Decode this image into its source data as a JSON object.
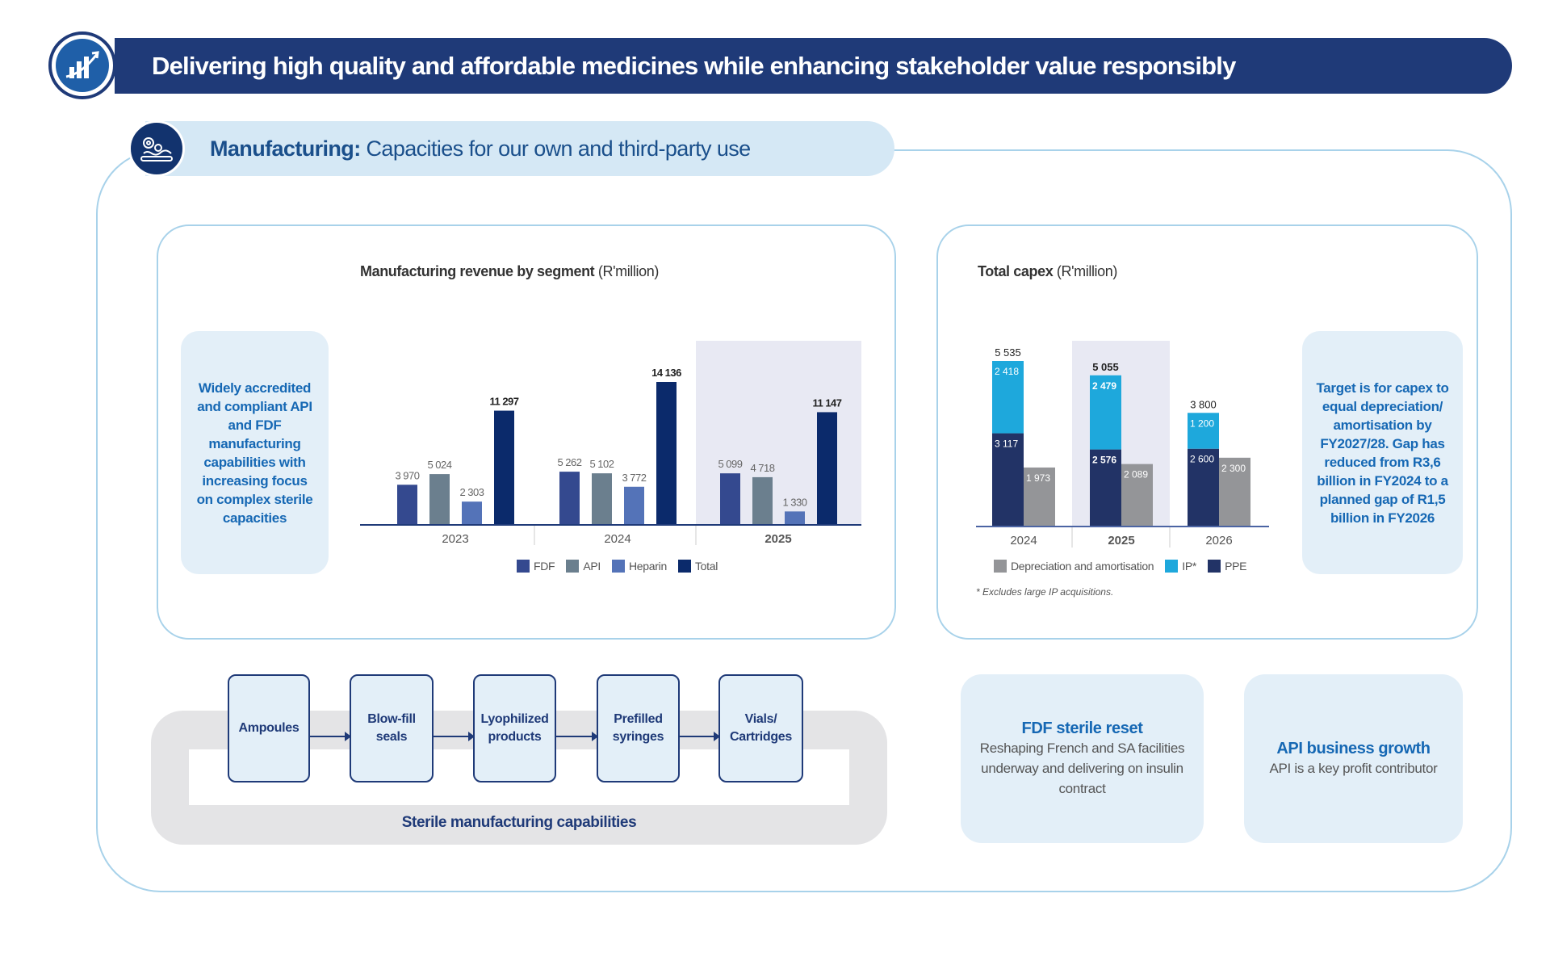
{
  "header": {
    "title": "Delivering high quality and affordable medicines while enhancing stakeholder value responsibly",
    "icon": "growth-chart-icon"
  },
  "section": {
    "title_bold": "Manufacturing:",
    "title_rest": "Capacities for our own and third-party use",
    "icon": "gear-conveyor-icon"
  },
  "left_note": "Widely accredited and compliant API and FDF manufacturing capabilities with increasing focus on complex sterile capacities",
  "right_note": "Target is for capex to equal depreciation/ amortisation by FY2027/28. Gap has reduced from R3,6 billion in FY2024 to a planned gap of R1,5 billion in FY2026",
  "chart_data": [
    {
      "type": "bar",
      "title": "Manufacturing revenue by segment",
      "unit": "(R'million)",
      "categories": [
        "2023",
        "2024",
        "2025"
      ],
      "highlight": "2025",
      "series": [
        {
          "name": "FDF",
          "values": [
            3970,
            5262,
            5099
          ],
          "labels": [
            "3 970",
            "5 262",
            "5 099"
          ],
          "color": "#34498f"
        },
        {
          "name": "API",
          "values": [
            5024,
            5102,
            4718
          ],
          "labels": [
            "5 024",
            "5 102",
            "4 718"
          ],
          "color": "#6b7f8e"
        },
        {
          "name": "Heparin",
          "values": [
            2303,
            3772,
            1330
          ],
          "labels": [
            "2 303",
            "3 772",
            "1 330"
          ],
          "color": "#5473b8"
        },
        {
          "name": "Total",
          "values": [
            11297,
            14136,
            11147
          ],
          "labels": [
            "11 297",
            "14 136",
            "11 147"
          ],
          "color": "#0b2a6b"
        }
      ],
      "legend": "bottom"
    },
    {
      "type": "bar",
      "stacked_with_side_bar": true,
      "title": "Total capex",
      "unit": "(R'million)",
      "categories": [
        "2024",
        "2025",
        "2026"
      ],
      "highlight": "2025",
      "totals": [
        5535,
        5055,
        3800
      ],
      "total_labels": [
        "5 535",
        "5 055",
        "3 800"
      ],
      "series": [
        {
          "name": "Depreciation and amortisation",
          "values": [
            1973,
            2089,
            2300
          ],
          "labels": [
            "1 973",
            "2 089",
            "2 300"
          ],
          "color": "#949598"
        },
        {
          "name": "IP*",
          "values": [
            2418,
            2479,
            1200
          ],
          "labels": [
            "2 418",
            "2 479",
            "1 200"
          ],
          "color": "#1ea8dc"
        },
        {
          "name": "PPE",
          "values": [
            3117,
            2576,
            2600
          ],
          "labels": [
            "3 117",
            "2 576",
            "2 600"
          ],
          "color": "#223366"
        }
      ],
      "legend": "bottom",
      "footnote": "*   Excludes large IP acquisitions."
    }
  ],
  "sterile": {
    "steps": [
      "Ampoules",
      "Blow-fill seals",
      "Lyophilized products",
      "Prefilled syringes",
      "Vials/ Cartridges"
    ],
    "caption": "Sterile manufacturing capabilities"
  },
  "info_cards": [
    {
      "title": "FDF sterile reset",
      "text": "Reshaping French and SA facilities underway and delivering on insulin contract"
    },
    {
      "title": "API business growth",
      "text": "API is a key profit contributor"
    }
  ]
}
